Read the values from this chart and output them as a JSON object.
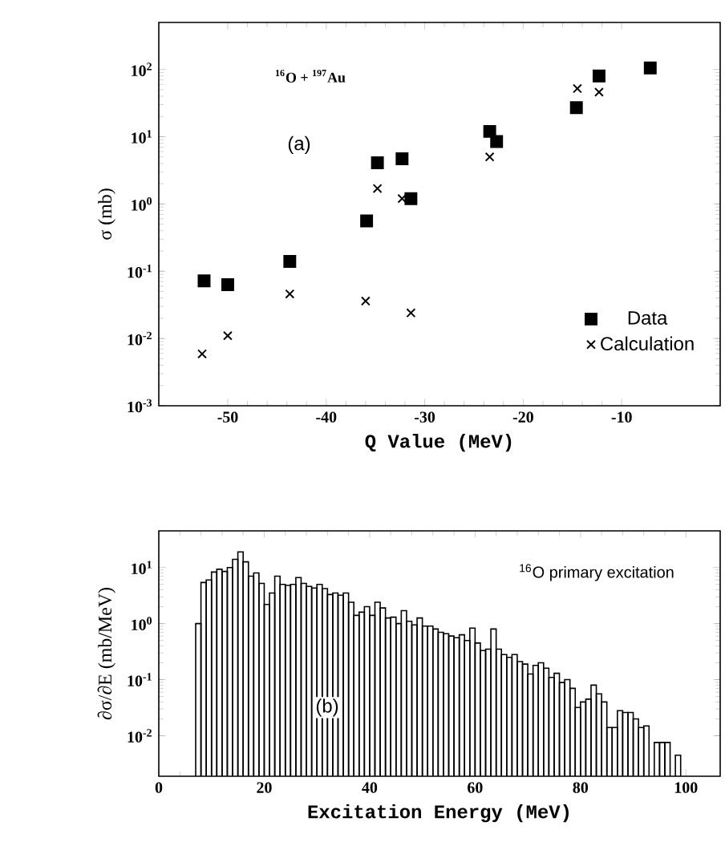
{
  "chart_data": [
    {
      "type": "scatter",
      "xlabel": "Q Value (MeV)",
      "ylabel": "σ (mb)",
      "log": "y",
      "legend": "bottom right",
      "annotations": [
        "$^{16}$O + $^{197}$Au",
        "(a)"
      ],
      "xlim": [
        -57,
        0
      ],
      "xticks": [
        -50,
        -40,
        -30,
        -20,
        -10
      ],
      "ylim": [
        0.001,
        500
      ],
      "yticks": [
        {
          "value": 0.001,
          "label": "10$^{-3}$"
        },
        {
          "value": 0.01,
          "label": "10$^{-2}$"
        },
        {
          "value": 0.1,
          "label": "10$^{-1}$"
        },
        {
          "value": 1,
          "label": "10$^{0}$"
        },
        {
          "value": 10,
          "label": "10$^{1}$"
        },
        {
          "value": 100,
          "label": "10$^{2}$"
        }
      ],
      "series": [
        {
          "name": "Data",
          "color": "#000000",
          "marker": "square",
          "x": [
            -52.4,
            -50,
            -43.7,
            -35.9,
            -34.8,
            -32.3,
            -31.4,
            -23.4,
            -22.7,
            -14.6,
            -12.3,
            -7.1
          ],
          "values": [
            0.072,
            0.063,
            0.14,
            0.56,
            4.1,
            4.7,
            1.2,
            12,
            8.5,
            27,
            80,
            105
          ]
        },
        {
          "name": "Calculation",
          "color": "#000000",
          "marker": "cross",
          "x": [
            -52.6,
            -50,
            -43.7,
            -36,
            -34.8,
            -31.4,
            -32.3,
            -23.4,
            -14.5,
            -12.3
          ],
          "values": [
            0.0059,
            0.011,
            0.046,
            0.036,
            1.7,
            0.024,
            1.2,
            5.0,
            52,
            46
          ]
        }
      ]
    },
    {
      "type": "histogram",
      "xlabel": "Excitation Energy (MeV)",
      "ylabel": "∂σ/∂E (mb/MeV)",
      "log": "y",
      "color": "#000000",
      "annotations": [
        "(b)",
        "$^{16}$O primary excitation"
      ],
      "xlim": [
        0,
        106.5
      ],
      "xticks": [
        0,
        20,
        40,
        60,
        80,
        100
      ],
      "ylim": [
        0.0019,
        45
      ],
      "yticks": [
        {
          "value": 0.01,
          "label": "10$^{-2}$"
        },
        {
          "value": 0.1,
          "label": "10$^{-1}$"
        },
        {
          "value": 1,
          "label": "10$^{0}$"
        },
        {
          "value": 10,
          "label": "10$^{1}$"
        }
      ],
      "bins": [
        7,
        8,
        9,
        10,
        11,
        12,
        13,
        14,
        15,
        16,
        17,
        18,
        19,
        20,
        21,
        22,
        23,
        24,
        25,
        26,
        27,
        28,
        29,
        30,
        31,
        32,
        33,
        34,
        35,
        36,
        37,
        38,
        39,
        40,
        41,
        42,
        43,
        44,
        45,
        46,
        47,
        48,
        49,
        50,
        51,
        52,
        53,
        54,
        55,
        56,
        57,
        58,
        59,
        60,
        61,
        62,
        63,
        64,
        65,
        66,
        67,
        68,
        69,
        70,
        71,
        72,
        73,
        74,
        75,
        76,
        77,
        78,
        79,
        80,
        81,
        82,
        83,
        84,
        85,
        86,
        87,
        88,
        89,
        90,
        91,
        92,
        93,
        94,
        95,
        96,
        97,
        98,
        99
      ],
      "values": [
        1.0,
        5.4,
        6,
        8.3,
        9.3,
        8.5,
        10,
        14,
        19,
        12.6,
        7,
        8,
        5.2,
        2.2,
        3.5,
        7,
        5,
        4.8,
        5,
        6.6,
        5.2,
        4.6,
        4.3,
        5,
        4.2,
        3.3,
        3.5,
        3.2,
        3.5,
        2.4,
        1.4,
        1.6,
        2.0,
        1.4,
        2.4,
        1.9,
        1.26,
        1.3,
        1.0,
        1.7,
        1.1,
        0.95,
        1.26,
        0.9,
        0.9,
        0.8,
        0.7,
        0.66,
        0.6,
        0.56,
        0.63,
        0.5,
        0.83,
        0.45,
        0.33,
        0.35,
        0.8,
        0.35,
        0.28,
        0.25,
        0.28,
        0.21,
        0.19,
        0.126,
        0.18,
        0.2,
        0.16,
        0.11,
        0.13,
        0.089,
        0.1,
        0.07,
        0.032,
        0.04,
        0.045,
        0.08,
        0.056,
        0.04,
        0.014,
        0.014,
        0.028,
        0.026,
        0.026,
        0.02,
        0.014,
        0.015,
        null,
        0.0076,
        0.0076,
        0.0076,
        null,
        0.0045
      ]
    }
  ]
}
